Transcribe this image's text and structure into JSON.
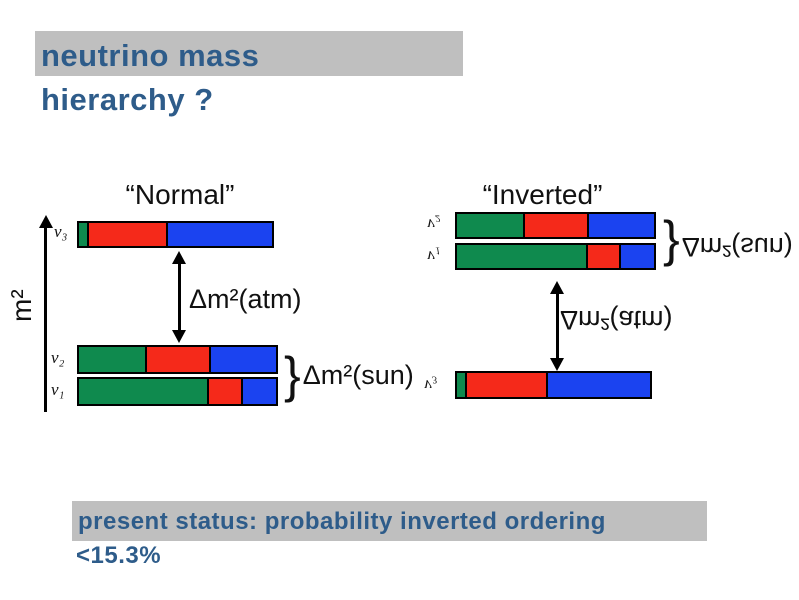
{
  "slide": {
    "title_line1": "neutrino mass",
    "title_line2": "hierarchy ?",
    "footer_line1": "present status: probability inverted ordering",
    "footer_line2": "<15.3%"
  },
  "axis": {
    "label": "m²"
  },
  "colors": {
    "green": "#0f8a4e",
    "red": "#f5291a",
    "blue": "#1b43f0",
    "highlight": "#bfbfbf",
    "accent_text": "#2e5c8a"
  },
  "normal": {
    "heading": "“Normal”",
    "atm_label": "Δm²(atm)",
    "sun_brace": "}",
    "sun_label": "Δm²(sun)",
    "bars": [
      {
        "name": "nu3",
        "label": "ν₃",
        "segments": [
          {
            "color": "green",
            "frac": 0.041
          },
          {
            "color": "red",
            "frac": 0.408
          },
          {
            "color": "blue",
            "frac": 0.551
          }
        ]
      },
      {
        "name": "nu2",
        "label": "ν₂",
        "segments": [
          {
            "color": "green",
            "frac": 0.34
          },
          {
            "color": "red",
            "frac": 0.325
          },
          {
            "color": "blue",
            "frac": 0.335
          }
        ]
      },
      {
        "name": "nu1",
        "label": "ν₁",
        "segments": [
          {
            "color": "green",
            "frac": 0.665
          },
          {
            "color": "red",
            "frac": 0.165
          },
          {
            "color": "blue",
            "frac": 0.17
          }
        ]
      }
    ]
  },
  "inverted": {
    "heading": "“Inverted”",
    "atm_label": "Δm²(atm)",
    "sun_brace": "}",
    "sun_label": "Δm²(sun)",
    "bars": [
      {
        "name": "nu2",
        "label": "ν₂",
        "segments": [
          {
            "color": "green",
            "frac": 0.34
          },
          {
            "color": "red",
            "frac": 0.325
          },
          {
            "color": "blue",
            "frac": 0.335
          }
        ]
      },
      {
        "name": "nu1",
        "label": "ν₁",
        "segments": [
          {
            "color": "green",
            "frac": 0.67
          },
          {
            "color": "red",
            "frac": 0.16
          },
          {
            "color": "blue",
            "frac": 0.17
          }
        ]
      },
      {
        "name": "nu3",
        "label": "ν₃",
        "segments": [
          {
            "color": "green",
            "frac": 0.04
          },
          {
            "color": "red",
            "frac": 0.42
          },
          {
            "color": "blue",
            "frac": 0.54
          }
        ]
      }
    ]
  }
}
